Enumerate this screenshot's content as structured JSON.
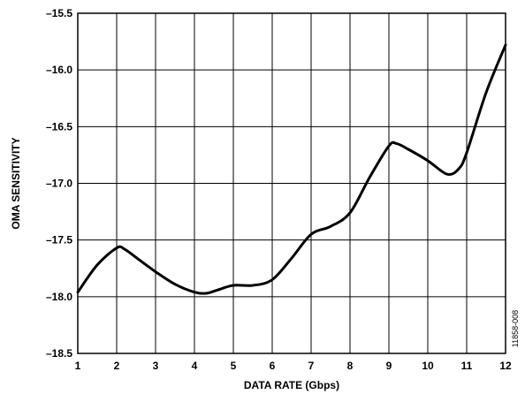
{
  "chart_data": {
    "type": "line",
    "xlabel": "DATA RATE (Gbps)",
    "ylabel": "OMA SENSITIVITY",
    "xlim": [
      1,
      12
    ],
    "ylim": [
      -18.5,
      -15.5
    ],
    "x_ticks": [
      "1",
      "2",
      "3",
      "4",
      "5",
      "6",
      "7",
      "8",
      "9",
      "10",
      "11",
      "12"
    ],
    "y_ticks": [
      "-15.5",
      "-16.0",
      "-16.5",
      "-17.0",
      "-17.5",
      "-18.0",
      "-18.5"
    ],
    "x_tick_values": [
      1,
      2,
      3,
      4,
      5,
      6,
      7,
      8,
      9,
      10,
      11,
      12
    ],
    "y_tick_values": [
      -15.5,
      -16.0,
      -16.5,
      -17.0,
      -17.5,
      -18.0,
      -18.5
    ],
    "grid": true,
    "series": [
      {
        "color": "#000000",
        "x": [
          1,
          1.5,
          2,
          2.2,
          2.6,
          3,
          3.5,
          4,
          4.3,
          4.6,
          5,
          5.5,
          6,
          6.5,
          7,
          7.5,
          8,
          8.5,
          9,
          9.2,
          9.5,
          10,
          10.5,
          10.8,
          11,
          11.5,
          12
        ],
        "y": [
          -17.96,
          -17.72,
          -17.57,
          -17.58,
          -17.68,
          -17.78,
          -17.89,
          -17.96,
          -17.97,
          -17.94,
          -17.9,
          -17.9,
          -17.85,
          -17.66,
          -17.45,
          -17.38,
          -17.26,
          -16.95,
          -16.67,
          -16.65,
          -16.7,
          -16.8,
          -16.92,
          -16.87,
          -16.73,
          -16.2,
          -15.78
        ]
      }
    ]
  },
  "figure_id": "11858-008"
}
